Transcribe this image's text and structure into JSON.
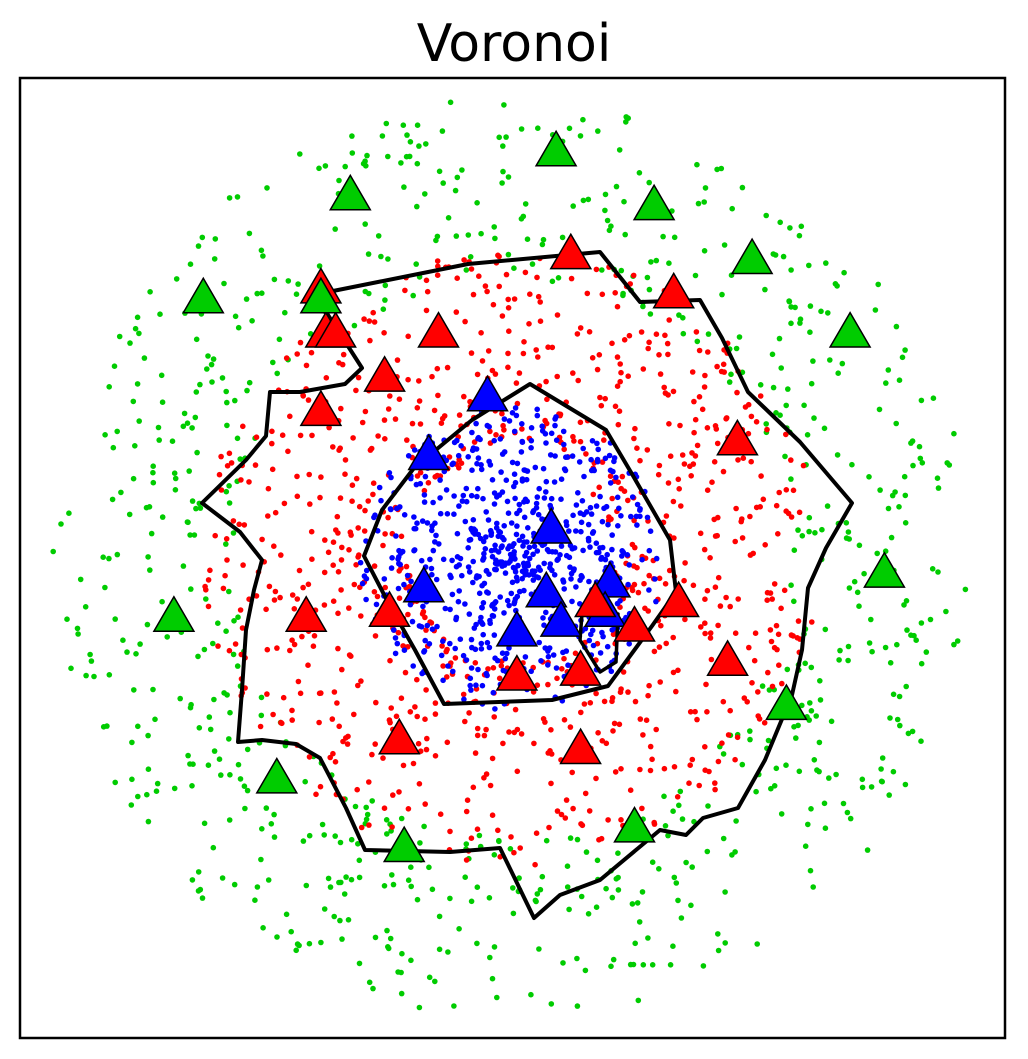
{
  "chart_data": {
    "type": "scatter",
    "title": "Voronoi",
    "xlabel": "",
    "ylabel": "",
    "xlim": [
      -1.0,
      1.0
    ],
    "ylim": [
      -1.0,
      1.0
    ],
    "grid": false,
    "ticks": false,
    "legend": "none",
    "colors": {
      "inner": "#0000ff",
      "middle": "#ff0000",
      "outer": "#00cc00",
      "boundary": "#000000"
    },
    "point_counts": {
      "inner": 700,
      "middle": 900,
      "outer": 780
    },
    "class_radii": {
      "inner": [
        0.0,
        0.31
      ],
      "middle": [
        0.21,
        0.63
      ],
      "outer": [
        0.57,
        0.94
      ]
    },
    "prototypes": [
      {
        "class": "inner",
        "x": -0.05,
        "y": 0.33
      },
      {
        "class": "inner",
        "x": -0.17,
        "y": 0.21
      },
      {
        "class": "inner",
        "x": 0.08,
        "y": 0.06
      },
      {
        "class": "inner",
        "x": -0.18,
        "y": -0.06
      },
      {
        "class": "inner",
        "x": 0.07,
        "y": -0.07
      },
      {
        "class": "inner",
        "x": 0.2,
        "y": -0.05
      },
      {
        "class": "inner",
        "x": 0.19,
        "y": -0.11
      },
      {
        "class": "inner",
        "x": 0.1,
        "y": -0.13
      },
      {
        "class": "inner",
        "x": 0.01,
        "y": -0.15
      },
      {
        "class": "middle",
        "x": -0.39,
        "y": 0.55
      },
      {
        "class": "middle",
        "x": -0.38,
        "y": 0.46
      },
      {
        "class": "middle",
        "x": -0.15,
        "y": 0.46
      },
      {
        "class": "middle",
        "x": -0.36,
        "y": 0.46
      },
      {
        "class": "middle",
        "x": -0.26,
        "y": 0.37
      },
      {
        "class": "middle",
        "x": -0.39,
        "y": 0.3
      },
      {
        "class": "middle",
        "x": 0.12,
        "y": 0.62
      },
      {
        "class": "middle",
        "x": 0.33,
        "y": 0.54
      },
      {
        "class": "middle",
        "x": 0.46,
        "y": 0.24
      },
      {
        "class": "middle",
        "x": 0.34,
        "y": -0.09
      },
      {
        "class": "middle",
        "x": 0.25,
        "y": -0.14
      },
      {
        "class": "middle",
        "x": 0.17,
        "y": -0.09
      },
      {
        "class": "middle",
        "x": 0.44,
        "y": -0.21
      },
      {
        "class": "middle",
        "x": -0.25,
        "y": -0.11
      },
      {
        "class": "middle",
        "x": -0.42,
        "y": -0.12
      },
      {
        "class": "middle",
        "x": 0.01,
        "y": -0.24
      },
      {
        "class": "middle",
        "x": 0.14,
        "y": -0.23
      },
      {
        "class": "middle",
        "x": -0.23,
        "y": -0.37
      },
      {
        "class": "middle",
        "x": 0.14,
        "y": -0.39
      },
      {
        "class": "outer",
        "x": 0.09,
        "y": 0.83
      },
      {
        "class": "outer",
        "x": -0.33,
        "y": 0.74
      },
      {
        "class": "outer",
        "x": 0.29,
        "y": 0.72
      },
      {
        "class": "outer",
        "x": 0.49,
        "y": 0.61
      },
      {
        "class": "outer",
        "x": -0.63,
        "y": 0.53
      },
      {
        "class": "outer",
        "x": -0.39,
        "y": 0.53
      },
      {
        "class": "outer",
        "x": 0.69,
        "y": 0.46
      },
      {
        "class": "outer",
        "x": 0.76,
        "y": -0.03
      },
      {
        "class": "outer",
        "x": -0.69,
        "y": -0.12
      },
      {
        "class": "outer",
        "x": 0.56,
        "y": -0.3
      },
      {
        "class": "outer",
        "x": -0.48,
        "y": -0.45
      },
      {
        "class": "outer",
        "x": -0.22,
        "y": -0.59
      },
      {
        "class": "outer",
        "x": 0.25,
        "y": -0.55
      }
    ]
  }
}
